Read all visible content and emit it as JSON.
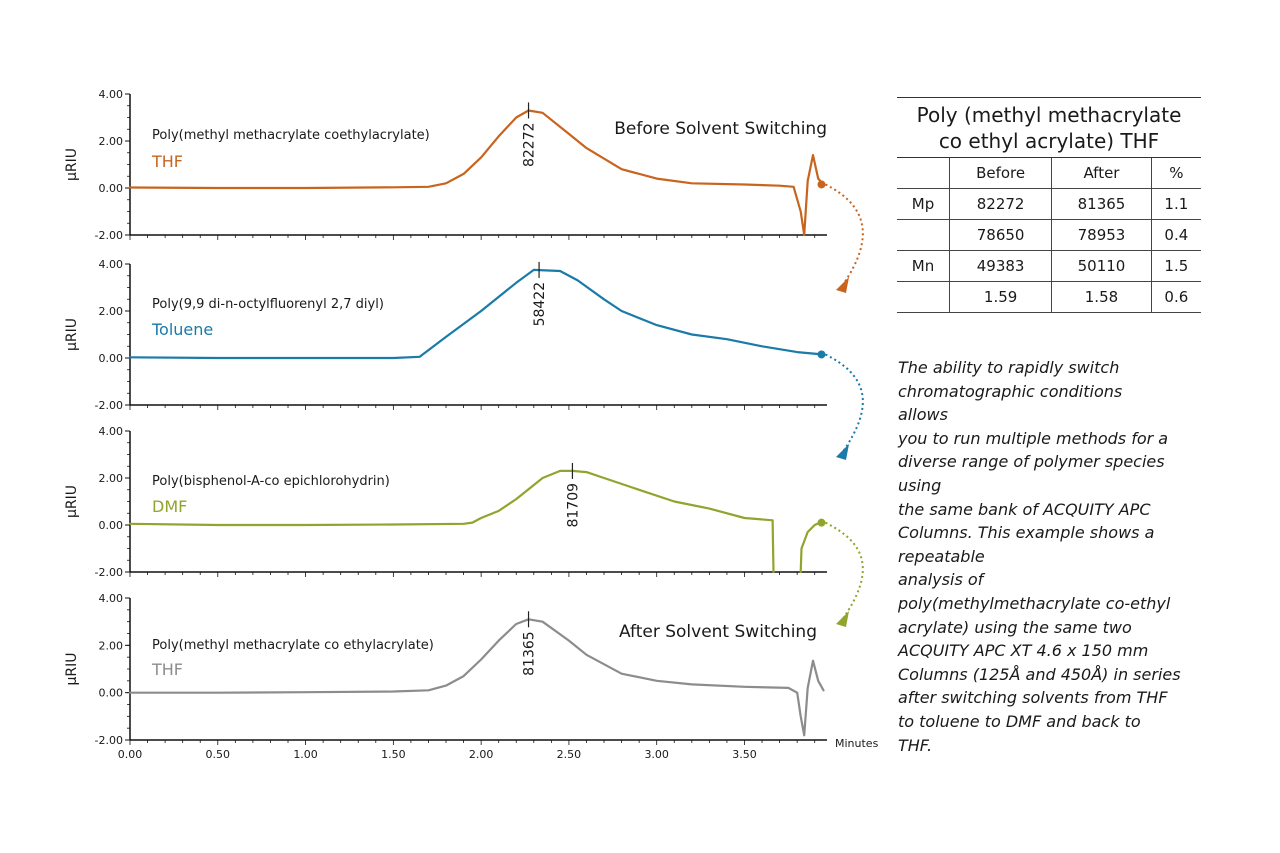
{
  "chart_data": {
    "type": "line",
    "xlabel": "Minutes",
    "ylabel": "µRIU",
    "xlim": [
      0,
      3.97
    ],
    "ylim": [
      -2.0,
      4.0
    ],
    "x_ticks": [
      "0.00",
      "0.50",
      "1.00",
      "1.50",
      "2.00",
      "2.50",
      "3.00",
      "3.50"
    ],
    "y_ticks": [
      "4.00",
      "2.00",
      "0.00",
      "-2.00"
    ],
    "panels": [
      {
        "sample": "Poly(methyl methacrylate coethylacrylate)",
        "solvent": "THF",
        "title": "Before Solvent Switching",
        "color": "#c8641e",
        "peak_label": "82272",
        "peak_x": 2.27,
        "points": [
          [
            0.0,
            0.02
          ],
          [
            0.5,
            0.0
          ],
          [
            1.0,
            0.0
          ],
          [
            1.5,
            0.03
          ],
          [
            1.7,
            0.05
          ],
          [
            1.8,
            0.2
          ],
          [
            1.9,
            0.6
          ],
          [
            2.0,
            1.3
          ],
          [
            2.1,
            2.2
          ],
          [
            2.2,
            3.0
          ],
          [
            2.27,
            3.3
          ],
          [
            2.35,
            3.2
          ],
          [
            2.5,
            2.3
          ],
          [
            2.6,
            1.7
          ],
          [
            2.8,
            0.8
          ],
          [
            3.0,
            0.4
          ],
          [
            3.2,
            0.2
          ],
          [
            3.5,
            0.15
          ],
          [
            3.7,
            0.1
          ],
          [
            3.78,
            0.05
          ],
          [
            3.82,
            -1.0
          ],
          [
            3.84,
            -2.0
          ],
          [
            3.86,
            0.3
          ],
          [
            3.89,
            1.4
          ],
          [
            3.92,
            0.4
          ],
          [
            3.95,
            0.15
          ]
        ],
        "end_marker": [
          3.95,
          0.15
        ]
      },
      {
        "sample": "Poly(9,9 di-n-octylfluorenyl 2,7 diyl)",
        "solvent": "Toluene",
        "title": "",
        "color": "#1a7aa8",
        "peak_label": "58422",
        "peak_x": 2.33,
        "points": [
          [
            0.0,
            0.03
          ],
          [
            0.5,
            0.0
          ],
          [
            1.0,
            0.0
          ],
          [
            1.5,
            0.0
          ],
          [
            1.65,
            0.05
          ],
          [
            1.8,
            0.9
          ],
          [
            2.0,
            2.0
          ],
          [
            2.2,
            3.2
          ],
          [
            2.3,
            3.75
          ],
          [
            2.45,
            3.7
          ],
          [
            2.55,
            3.3
          ],
          [
            2.7,
            2.5
          ],
          [
            2.8,
            2.0
          ],
          [
            3.0,
            1.4
          ],
          [
            3.2,
            1.0
          ],
          [
            3.4,
            0.8
          ],
          [
            3.6,
            0.5
          ],
          [
            3.8,
            0.25
          ],
          [
            3.95,
            0.15
          ]
        ],
        "end_marker": [
          3.95,
          0.15
        ]
      },
      {
        "sample": "Poly(bisphenol-A-co epichlorohydrin)",
        "solvent": "DMF",
        "title": "",
        "color": "#8fa52e",
        "peak_label": "81709",
        "peak_x": 2.52,
        "points": [
          [
            0.0,
            0.05
          ],
          [
            0.5,
            0.0
          ],
          [
            1.0,
            0.0
          ],
          [
            1.5,
            0.02
          ],
          [
            1.9,
            0.05
          ],
          [
            1.95,
            0.1
          ],
          [
            2.0,
            0.3
          ],
          [
            2.1,
            0.6
          ],
          [
            2.2,
            1.1
          ],
          [
            2.35,
            2.0
          ],
          [
            2.45,
            2.3
          ],
          [
            2.52,
            2.3
          ],
          [
            2.6,
            2.25
          ],
          [
            2.7,
            2.0
          ],
          [
            2.9,
            1.5
          ],
          [
            3.1,
            1.0
          ],
          [
            3.3,
            0.7
          ],
          [
            3.5,
            0.3
          ],
          [
            3.66,
            0.2
          ],
          [
            3.665,
            -2.0
          ]
        ],
        "tail_points": [
          [
            3.82,
            -2.0
          ],
          [
            3.825,
            -1.0
          ],
          [
            3.86,
            -0.3
          ],
          [
            3.9,
            0.0
          ],
          [
            3.93,
            0.1
          ]
        ],
        "end_marker": [
          3.95,
          0.1
        ]
      },
      {
        "sample": "Poly(methyl methacrylate co ethylacrylate)",
        "solvent": "THF",
        "title": "After Solvent Switching",
        "color": "#8c8c8c",
        "peak_label": "81365",
        "peak_x": 2.27,
        "points": [
          [
            0.0,
            0.0
          ],
          [
            0.5,
            0.0
          ],
          [
            1.0,
            0.02
          ],
          [
            1.5,
            0.05
          ],
          [
            1.7,
            0.1
          ],
          [
            1.8,
            0.3
          ],
          [
            1.9,
            0.7
          ],
          [
            2.0,
            1.4
          ],
          [
            2.1,
            2.2
          ],
          [
            2.2,
            2.9
          ],
          [
            2.27,
            3.1
          ],
          [
            2.35,
            3.0
          ],
          [
            2.5,
            2.2
          ],
          [
            2.6,
            1.6
          ],
          [
            2.8,
            0.8
          ],
          [
            3.0,
            0.5
          ],
          [
            3.2,
            0.35
          ],
          [
            3.5,
            0.25
          ],
          [
            3.75,
            0.2
          ],
          [
            3.8,
            0.0
          ],
          [
            3.82,
            -1.0
          ],
          [
            3.84,
            -1.8
          ],
          [
            3.86,
            0.2
          ],
          [
            3.89,
            1.35
          ],
          [
            3.92,
            0.5
          ],
          [
            3.95,
            0.1
          ]
        ]
      }
    ]
  },
  "table": {
    "title_line1": "Poly (methyl methacrylate",
    "title_line2": "co ethyl acrylate) THF",
    "headers": [
      "",
      "Before",
      "After",
      "%"
    ],
    "rows": [
      [
        "Mp",
        "82272",
        "81365",
        "1.1"
      ],
      [
        "",
        "78650",
        "78953",
        "0.4"
      ],
      [
        "Mn",
        "49383",
        "50110",
        "1.5"
      ],
      [
        "",
        "1.59",
        "1.58",
        "0.6"
      ]
    ]
  },
  "description": [
    "The ability to rapidly switch",
    "chromatographic conditions",
    "allows",
    "you to run multiple methods for a",
    "diverse range of polymer species",
    "using",
    "the same bank of ACQUITY APC",
    "Columns. This example shows a",
    "repeatable",
    "analysis of",
    "poly(methylmethacrylate co-ethyl",
    "acrylate) using the same two",
    "ACQUITY APC XT 4.6 x 150 mm",
    "Columns (125Å and 450Å) in series",
    "after switching solvents from THF",
    "to toluene to DMF and back to",
    "THF."
  ]
}
